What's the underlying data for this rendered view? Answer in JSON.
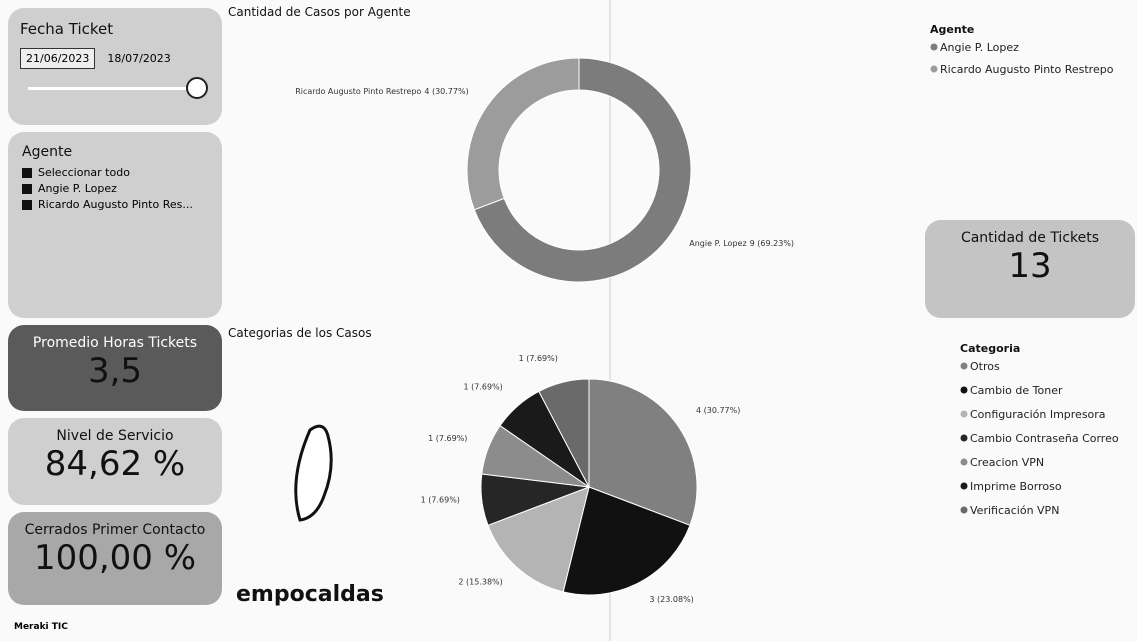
{
  "date_filter": {
    "title": "Fecha Ticket",
    "start": "21/06/2023",
    "end": "18/07/2023"
  },
  "agent_filter": {
    "title": "Agente",
    "options": [
      "Seleccionar todo",
      "Angie P. Lopez",
      "Ricardo Augusto Pinto Res..."
    ]
  },
  "kpis": [
    {
      "title": "Promedio Horas Tickets",
      "value": "3,5"
    },
    {
      "title": "Nivel de Servicio",
      "value": "84,62 %"
    },
    {
      "title": "Cerrados Primer Contacto",
      "value": "100,00 %"
    },
    {
      "title": "Cantidad de Tickets",
      "value": "13"
    }
  ],
  "logo": {
    "name": "empocaldas",
    "credit": "Meraki TIC"
  },
  "charts": [
    {
      "type": "donut",
      "title": "Cantidad de Casos por Agente",
      "legend_title": "Agente",
      "categories": [
        "Angie P. Lopez",
        "Ricardo Augusto Pinto Restrepo"
      ],
      "values": [
        9,
        4
      ],
      "value_labels": [
        "9 (69.23%)",
        "4 (30.77%)"
      ],
      "colors": [
        "#7c7c7c",
        "#9c9c9c"
      ]
    },
    {
      "type": "pie",
      "title": "Categorias de los Casos",
      "legend_title": "Categoria",
      "categories": [
        "Otros",
        "Cambio de Toner",
        "Configuración Impresora",
        "Cambio Contraseña Correo",
        "Creacion VPN",
        "Imprime Borroso",
        "Verificación VPN"
      ],
      "values": [
        4,
        3,
        2,
        1,
        1,
        1,
        1
      ],
      "value_labels": [
        "4 (30.77%)",
        "3 (23.08%)",
        "2 (15.38%)",
        "1 (7.69%)",
        "1 (7.69%)",
        "1 (7.69%)",
        "1 (7.69%)"
      ],
      "colors": [
        "#808080",
        "#111111",
        "#b4b4b4",
        "#262626",
        "#8c8c8c",
        "#1a1a1a",
        "#6a6a6a"
      ]
    }
  ]
}
